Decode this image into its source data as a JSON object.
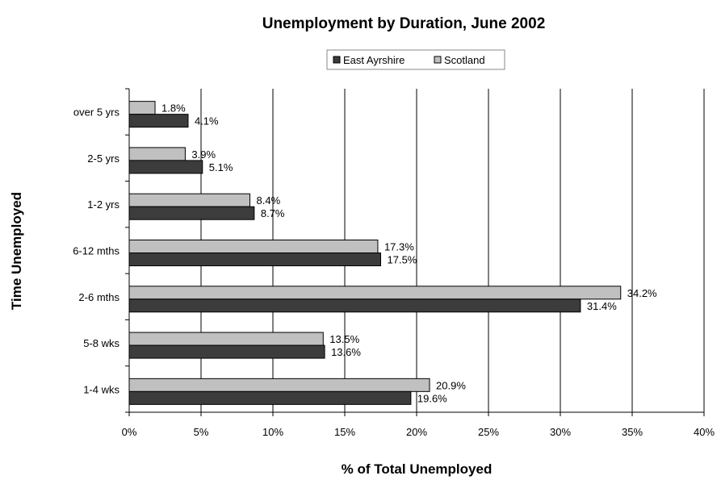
{
  "chart_data": {
    "type": "bar",
    "orientation": "horizontal",
    "title": "Unemployment by Duration, June 2002",
    "xlabel": "% of Total Unemployed",
    "ylabel": "Time Unemployed",
    "categories": [
      "over 5 yrs",
      "2-5 yrs",
      "1-2 yrs",
      "6-12 mths",
      "2-6 mths",
      "5-8 wks",
      "1-4 wks"
    ],
    "series": [
      {
        "name": "East Ayrshire",
        "color": "#3c3c3c",
        "values": [
          4.1,
          5.1,
          8.7,
          17.5,
          31.4,
          13.6,
          19.6
        ],
        "labels": [
          "4.1%",
          "5.1%",
          "8.7%",
          "17.5%",
          "31.4%",
          "13.6%",
          "19.6%"
        ]
      },
      {
        "name": "Scotland",
        "color": "#c0c0c0",
        "values": [
          1.8,
          3.9,
          8.4,
          17.3,
          34.2,
          13.5,
          20.9
        ],
        "labels": [
          "1.8%",
          "3.9%",
          "8.4%",
          "17.3%",
          "34.2%",
          "13.5%",
          "20.9%"
        ]
      }
    ],
    "xlim": [
      0,
      40
    ],
    "xticks": [
      0,
      5,
      10,
      15,
      20,
      25,
      30,
      35,
      40
    ],
    "xtick_labels": [
      "0%",
      "5%",
      "10%",
      "15%",
      "20%",
      "25%",
      "30%",
      "35%",
      "40%"
    ],
    "grid": "vertical",
    "legend_position": "top-center"
  }
}
